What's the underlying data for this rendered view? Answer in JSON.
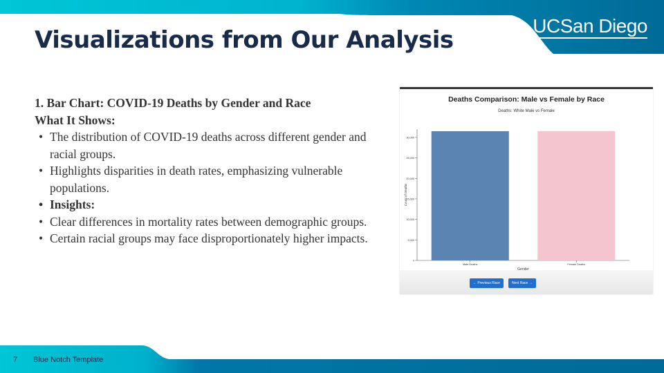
{
  "slide": {
    "title": "Visualizations from Our Analysis",
    "logo": {
      "uc": "UC",
      "name": "San Diego"
    },
    "page_number": "7",
    "footer_label": "Blue Notch Template"
  },
  "content": {
    "heading": "1. Bar Chart: COVID-19 Deaths by Gender and Race",
    "subheading": "What It Shows:",
    "bullets": [
      {
        "text": "The distribution of COVID-19 deaths across different gender and racial groups.",
        "bold": false
      },
      {
        "text": "Highlights disparities in death rates, emphasizing vulnerable populations.",
        "bold": false
      },
      {
        "text": "Insights:",
        "bold": true
      },
      {
        "text": "Clear differences in mortality rates between demographic groups.",
        "bold": false
      },
      {
        "text": "Certain racial groups may face disproportionately higher impacts.",
        "bold": false
      }
    ],
    "bullet_char": "•"
  },
  "chart_data": {
    "type": "bar",
    "title": "Deaths Comparison: Male vs Female by Race",
    "subtitle": "Deaths: White Male vs Female",
    "categories": [
      "Male Deaths",
      "Female Deaths"
    ],
    "values": [
      31500,
      31500
    ],
    "colors": [
      "#5b84b3",
      "#f5c5cf"
    ],
    "xlabel": "Gender",
    "ylabel": "Count of Deaths",
    "ylim": [
      0,
      32000
    ],
    "yticks": [
      0,
      5000,
      10000,
      15000,
      20000,
      25000,
      30000
    ],
    "ytick_labels": [
      "0",
      "5,000",
      "10,000",
      "15,000",
      "20,000",
      "25,000",
      "30,000"
    ],
    "grid": false,
    "buttons": {
      "prev": "← Previous Race",
      "next": "Next Race →"
    }
  },
  "colors": {
    "navy": "#182b49",
    "teal": "#00c6d7",
    "blue": "#006a96",
    "body_text": "#333333"
  }
}
